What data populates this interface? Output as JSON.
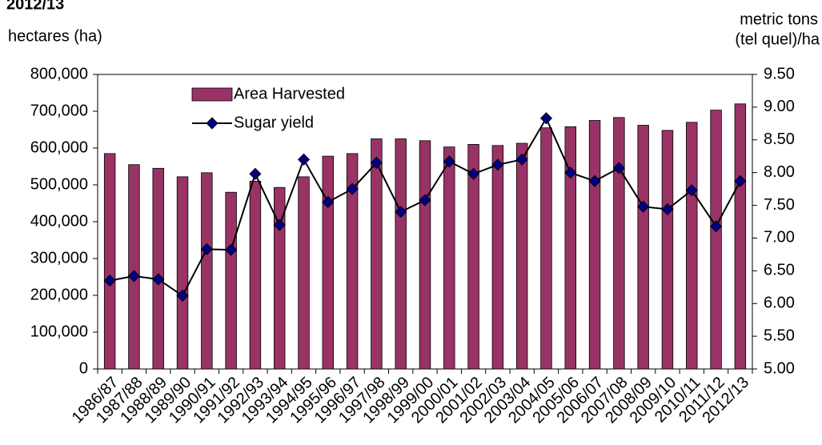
{
  "chart_data": {
    "type": "bar-line",
    "title": "2012/13",
    "ylabel": "hectares (ha)",
    "y2label": [
      "metric tons",
      "(tel quel)/ha"
    ],
    "categories": [
      "1986/87",
      "1987/88",
      "1988/89",
      "1989/90",
      "1990/91",
      "1991/92",
      "1992/93",
      "1993/94",
      "1994/95",
      "1995/96",
      "1996/97",
      "1997/98",
      "1998/99",
      "1999/00",
      "2000/01",
      "2001/02",
      "2002/03",
      "2003/04",
      "2004/05",
      "2005/06",
      "2006/07",
      "2007/08",
      "2008/09",
      "2009/10",
      "2010/11",
      "2011/12",
      "2012/13"
    ],
    "series": [
      {
        "name": "Area Harvested",
        "type": "bar",
        "color": "#993366",
        "axis": "y",
        "values": [
          585000,
          555000,
          545000,
          522000,
          533000,
          480000,
          510000,
          493000,
          522000,
          578000,
          585000,
          625000,
          625000,
          620000,
          603000,
          610000,
          607000,
          613000,
          655000,
          658000,
          675000,
          683000,
          662000,
          648000,
          670000,
          703000,
          720000
        ]
      },
      {
        "name": "Sugar yield",
        "type": "line",
        "color": "#000000",
        "marker_color": "#000080",
        "axis": "y2",
        "values": [
          6.35,
          6.42,
          6.37,
          6.12,
          6.83,
          6.82,
          7.98,
          7.2,
          8.2,
          7.55,
          7.75,
          8.15,
          7.4,
          7.58,
          8.17,
          7.98,
          8.12,
          8.2,
          8.83,
          8.0,
          7.87,
          8.07,
          7.48,
          7.44,
          7.73,
          7.18,
          7.87
        ]
      }
    ],
    "ylim": [
      0,
      800000
    ],
    "yticks": [
      0,
      {
        "value": 100000,
        "label": "100,000"
      },
      {
        "value": 200000,
        "label": "200,000"
      },
      {
        "value": 300000,
        "label": "300,000"
      },
      {
        "value": 400000,
        "label": "400,000"
      },
      {
        "value": 500000,
        "label": "500,000"
      },
      {
        "value": 600000,
        "label": "600,000"
      },
      {
        "value": 700000,
        "label": "700,000"
      },
      {
        "value": 800000,
        "label": "800,000"
      }
    ],
    "y2lim": [
      5,
      9.5
    ],
    "y2ticks": [
      {
        "value": 5,
        "label": "5.00"
      },
      {
        "value": 5.5,
        "label": "5.50"
      },
      {
        "value": 6,
        "label": "6.00"
      },
      {
        "value": 6.5,
        "label": "6.50"
      },
      {
        "value": 7,
        "label": "7.00"
      },
      {
        "value": 7.5,
        "label": "7.50"
      },
      {
        "value": 8,
        "label": "8.00"
      },
      {
        "value": 8.5,
        "label": "8.50"
      },
      {
        "value": 9,
        "label": "9.00"
      },
      {
        "value": 9.5,
        "label": "9.50"
      }
    ],
    "legend": "top-left"
  }
}
